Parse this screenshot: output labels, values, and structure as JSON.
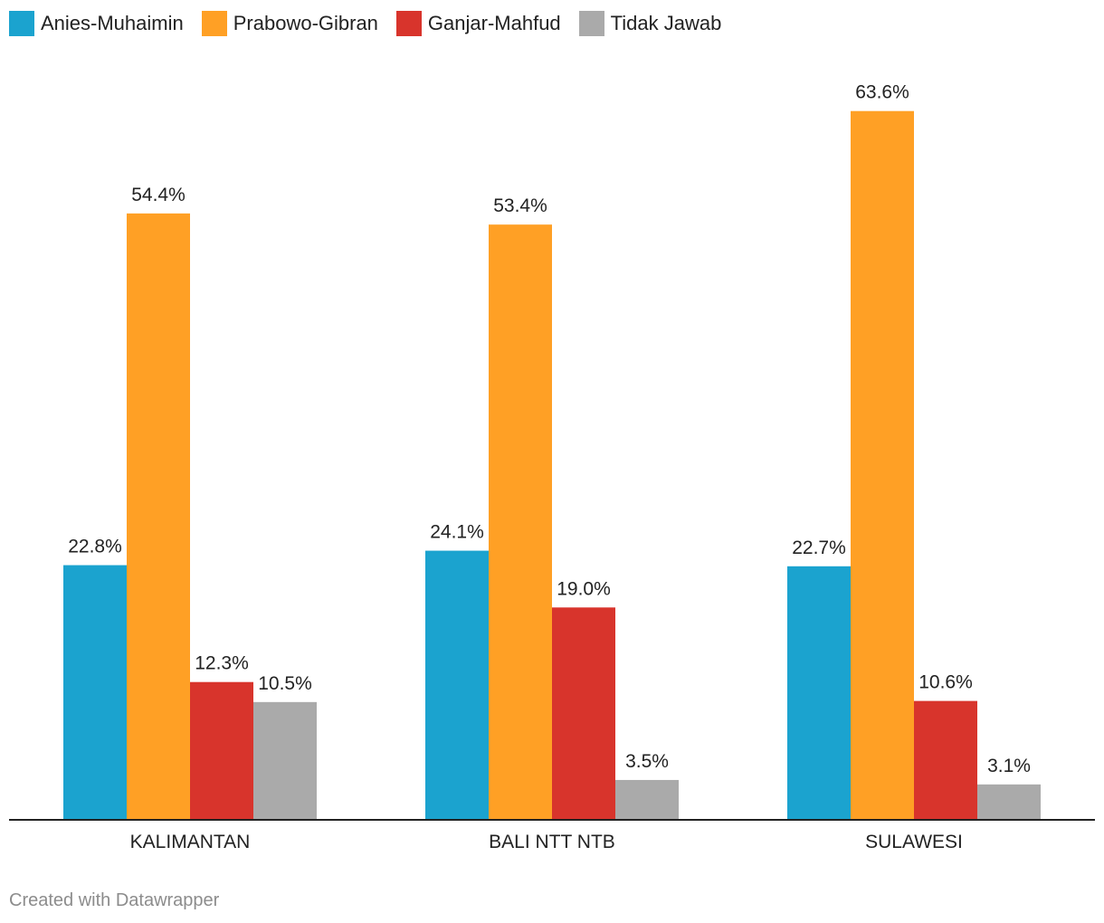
{
  "chart_data": {
    "type": "bar",
    "title": "",
    "xlabel": "",
    "ylabel": "",
    "ylim": [
      0,
      70
    ],
    "grid": false,
    "legend_position": "top-left",
    "value_suffix": "%",
    "categories": [
      "KALIMANTAN",
      "BALI NTT NTB",
      "SULAWESI"
    ],
    "series": [
      {
        "name": "Anies-Muhaimin",
        "color": "#1ba3cf",
        "values": [
          22.8,
          24.1,
          22.7
        ]
      },
      {
        "name": "Prabowo-Gibran",
        "color": "#ffa025",
        "values": [
          54.4,
          53.4,
          63.6
        ]
      },
      {
        "name": "Ganjar-Mahfud",
        "color": "#d8342c",
        "values": [
          12.3,
          19.0,
          10.6
        ]
      },
      {
        "name": "Tidak Jawab",
        "color": "#aaaaaa",
        "values": [
          10.5,
          3.5,
          3.1
        ]
      }
    ]
  },
  "footer": {
    "credit": "Created with Datawrapper"
  }
}
